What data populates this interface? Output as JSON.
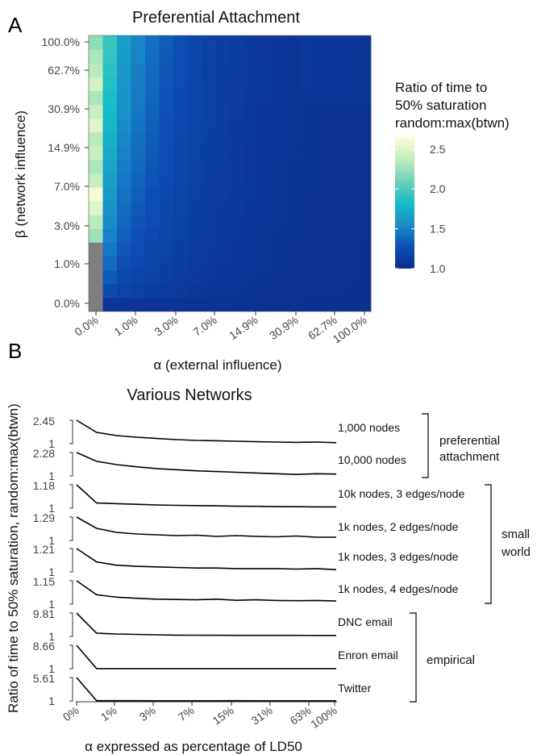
{
  "panel_a": {
    "letter": "A",
    "title": "Preferential Attachment",
    "xlabel": "α (external influence)",
    "ylabel": "β (network influence)",
    "x_tick_labels": [
      "0.0%",
      "1.0%",
      "3.0%",
      "7.0%",
      "14.9%",
      "30.9%",
      "62.7%",
      "100.0%"
    ],
    "y_tick_labels": [
      "0.0%",
      "1.0%",
      "3.0%",
      "7.0%",
      "14.9%",
      "30.9%",
      "62.7%",
      "100.0%"
    ],
    "legend": {
      "title_lines": [
        "Ratio of time to",
        "50% saturation",
        "random:max(btwn)"
      ],
      "tick_labels": [
        "2.5",
        "2.0",
        "1.5",
        "1.0"
      ],
      "tick_values": [
        2.5,
        2.0,
        1.5,
        1.0
      ],
      "range": [
        1.0,
        2.65
      ],
      "colors": [
        "#0b2f8f",
        "#0d4fb5",
        "#1a8fc9",
        "#15bcc7",
        "#6fd1b8",
        "#c2eebe",
        "#fffdd5"
      ]
    }
  },
  "panel_b": {
    "letter": "B",
    "title": "Various Networks",
    "xlabel": "α expressed as percentage of LD50",
    "ylabel": "Ratio of time to 50% saturation, random:max(btwn)",
    "x_tick_labels": [
      "0%",
      "1%",
      "3%",
      "7%",
      "15%",
      "31%",
      "63%",
      "100%"
    ],
    "groups": [
      {
        "label_lines": [
          "preferential",
          "attachment"
        ]
      },
      {
        "label_lines": [
          "small",
          "world"
        ]
      },
      {
        "label_lines": [
          "empirical"
        ]
      }
    ],
    "rows": [
      {
        "label": "1,000 nodes",
        "max_label": "2.45",
        "min_label": "1"
      },
      {
        "label": "10,000 nodes",
        "max_label": "2.28",
        "min_label": "1"
      },
      {
        "label": "10k nodes, 3 edges/node",
        "max_label": "1.18",
        "min_label": "1"
      },
      {
        "label": "1k nodes, 2 edges/node",
        "max_label": "1.29",
        "min_label": "1"
      },
      {
        "label": "1k nodes, 3 edges/node",
        "max_label": "1.21",
        "min_label": "1"
      },
      {
        "label": "1k nodes, 4 edges/node",
        "max_label": "1.15",
        "min_label": "1"
      },
      {
        "label": "DNC email",
        "max_label": "9.81",
        "min_label": "1"
      },
      {
        "label": "Enron email",
        "max_label": "8.66",
        "min_label": "1"
      },
      {
        "label": "Twitter",
        "max_label": "5.61",
        "min_label": "1"
      }
    ]
  },
  "chart_data": [
    {
      "type": "heatmap",
      "title": "Preferential Attachment",
      "xlabel": "α (external influence)",
      "ylabel": "β (network influence)",
      "x_tick_labels": [
        "0.0%",
        "1.0%",
        "3.0%",
        "7.0%",
        "14.9%",
        "30.9%",
        "62.7%",
        "100.0%"
      ],
      "y_tick_labels": [
        "0.0%",
        "1.0%",
        "3.0%",
        "7.0%",
        "14.9%",
        "30.9%",
        "62.7%",
        "100.0%"
      ],
      "grid_size": [
        20,
        20
      ],
      "color_scale_range": [
        1.0,
        2.65
      ],
      "first_column_values_bottom_to_top": [
        null,
        null,
        null,
        null,
        null,
        2.25,
        2.35,
        2.5,
        2.6,
        2.4,
        2.3,
        2.4,
        2.35,
        2.5,
        2.4,
        2.3,
        2.45,
        2.35,
        2.3,
        2.2
      ],
      "missing_cells": "α = 0.0% column, lowest five β rows (shown grey)",
      "remaining_cells_value_range": [
        1.0,
        2.0
      ],
      "legend_title": "Ratio of time to 50% saturation random:max(btwn)",
      "legend_ticks": [
        1.0,
        1.5,
        2.0,
        2.5
      ]
    },
    {
      "type": "line",
      "title": "Various Networks",
      "xlabel": "α expressed as percentage of LD50",
      "ylabel": "Ratio of time to 50% saturation, random:max(btwn)",
      "x_tick_labels": [
        "0%",
        "1%",
        "3%",
        "7%",
        "15%",
        "31%",
        "63%",
        "100%"
      ],
      "x_points": 14,
      "series": [
        {
          "name": "1,000 nodes",
          "group": "preferential attachment",
          "ylim": [
            1,
            2.45
          ],
          "values": [
            2.45,
            1.7,
            1.5,
            1.4,
            1.32,
            1.25,
            1.2,
            1.18,
            1.15,
            1.12,
            1.1,
            1.08,
            1.1,
            1.06
          ]
        },
        {
          "name": "10,000 nodes",
          "group": "preferential attachment",
          "ylim": [
            1,
            2.28
          ],
          "values": [
            2.28,
            1.8,
            1.62,
            1.5,
            1.4,
            1.34,
            1.28,
            1.24,
            1.2,
            1.16,
            1.12,
            1.08,
            1.12,
            1.1
          ]
        },
        {
          "name": "10k nodes, 3 edges/node",
          "group": "small world",
          "ylim": [
            1,
            1.18
          ],
          "values": [
            1.18,
            1.04,
            1.035,
            1.03,
            1.025,
            1.022,
            1.02,
            1.018,
            1.015,
            1.014,
            1.012,
            1.011,
            1.01,
            1.01
          ]
        },
        {
          "name": "1k nodes, 2 edges/node",
          "group": "small world",
          "ylim": [
            1,
            1.29
          ],
          "values": [
            1.29,
            1.15,
            1.1,
            1.08,
            1.07,
            1.06,
            1.065,
            1.05,
            1.06,
            1.05,
            1.045,
            1.055,
            1.04,
            1.04
          ]
        },
        {
          "name": "1k nodes, 3 edges/node",
          "group": "small world",
          "ylim": [
            1,
            1.21
          ],
          "values": [
            1.21,
            1.09,
            1.06,
            1.05,
            1.045,
            1.04,
            1.035,
            1.035,
            1.03,
            1.03,
            1.03,
            1.025,
            1.03,
            1.02
          ]
        },
        {
          "name": "1k nodes, 4 edges/node",
          "group": "small world",
          "ylim": [
            1,
            1.15
          ],
          "values": [
            1.15,
            1.06,
            1.045,
            1.038,
            1.032,
            1.03,
            1.028,
            1.032,
            1.025,
            1.028,
            1.024,
            1.022,
            1.024,
            1.02
          ]
        },
        {
          "name": "DNC email",
          "group": "empirical",
          "ylim": [
            1,
            9.81
          ],
          "values": [
            9.81,
            2.2,
            1.9,
            1.75,
            1.6,
            1.5,
            1.45,
            1.42,
            1.4,
            1.4,
            1.38,
            1.38,
            1.37,
            1.37
          ]
        },
        {
          "name": "Enron email",
          "group": "empirical",
          "ylim": [
            1,
            8.66
          ],
          "values": [
            8.66,
            1.02,
            1.02,
            1.02,
            1.02,
            1.02,
            1.02,
            1.02,
            1.02,
            1.02,
            1.02,
            1.02,
            1.02,
            1.02
          ]
        },
        {
          "name": "Twitter",
          "group": "empirical",
          "ylim": [
            1,
            5.61
          ],
          "values": [
            5.61,
            1.05,
            1.04,
            1.04,
            1.03,
            1.03,
            1.03,
            1.03,
            1.04,
            1.03,
            1.03,
            1.03,
            1.03,
            1.03
          ]
        }
      ]
    }
  ]
}
